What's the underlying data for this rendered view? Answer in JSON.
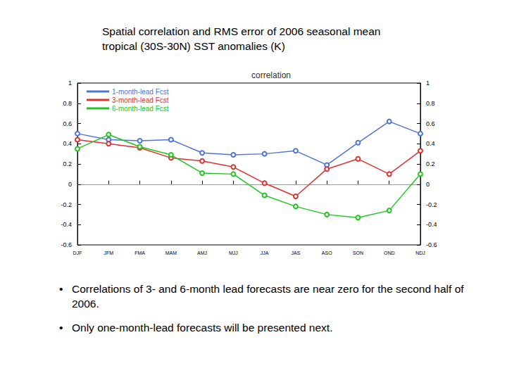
{
  "heading": "Spatial correlation and RMS error of 2006 seasonal mean tropical (30S-30N) SST anomalies (K)",
  "chart_data": {
    "type": "line",
    "title": "correlation",
    "categories": [
      "DJF",
      "JFM",
      "FMA",
      "MAM",
      "AMJ",
      "MJJ",
      "JJA",
      "JAS",
      "ASO",
      "SON",
      "OND",
      "NDJ"
    ],
    "series": [
      {
        "name": "1-month-lead Fcst",
        "color": "#4f74d8",
        "values": [
          0.5,
          0.44,
          0.43,
          0.44,
          0.31,
          0.29,
          0.3,
          0.33,
          0.19,
          0.41,
          0.62,
          0.5
        ]
      },
      {
        "name": "3-month-lead Fcst",
        "color": "#e03030",
        "values": [
          0.44,
          0.4,
          0.36,
          0.26,
          0.23,
          0.17,
          0.01,
          -0.12,
          0.15,
          0.25,
          0.1,
          0.33
        ]
      },
      {
        "name": "6-month-lead Fcst",
        "color": "#22c422",
        "values": [
          0.35,
          0.49,
          0.37,
          0.29,
          0.11,
          0.1,
          -0.11,
          -0.22,
          -0.3,
          -0.33,
          -0.26,
          0.1
        ]
      }
    ],
    "ylim": [
      -0.6,
      1
    ],
    "yticks": [
      -0.6,
      -0.4,
      -0.2,
      0,
      0.2,
      0.4,
      0.6,
      0.8,
      1
    ],
    "y2lim": [
      -0.6,
      1
    ],
    "y2ticks": [
      -0.6,
      -0.4,
      -0.2,
      0,
      0.2,
      0.4,
      0.6,
      0.8,
      1
    ],
    "grid": false,
    "legend": "upper left",
    "marker": "circle"
  },
  "bullets": [
    "Correlations of 3- and 6-month lead forecasts are near zero for the second half of 2006.",
    "Only one-month-lead forecasts will be presented next."
  ]
}
